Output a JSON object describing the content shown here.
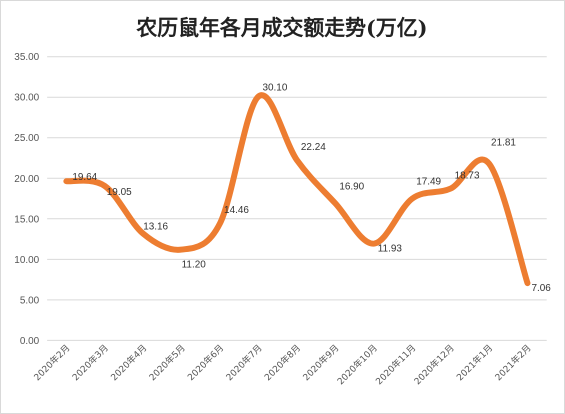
{
  "chart_data": {
    "type": "line",
    "title": "农历鼠年各月成交额走势(万亿)",
    "xlabel": "",
    "ylabel": "",
    "categories": [
      "2020年2月",
      "2020年3月",
      "2020年4月",
      "2020年5月",
      "2020年6月",
      "2020年7月",
      "2020年8月",
      "2020年9月",
      "2020年10月",
      "2020年11月",
      "2020年12月",
      "2021年1月",
      "2021年2月"
    ],
    "series": [
      {
        "values": [
          19.64,
          19.05,
          13.16,
          11.2,
          14.46,
          30.1,
          22.24,
          16.9,
          11.93,
          17.49,
          18.73,
          21.81,
          7.06
        ]
      }
    ],
    "data_labels": [
      "19.64",
      "19.05",
      "13.16",
      "11.20",
      "14.46",
      "30.10",
      "22.24",
      "16.90",
      "11.93",
      "17.49",
      "18.73",
      "21.81",
      "7.06"
    ],
    "y_ticks": [
      "0.00",
      "5.00",
      "10.00",
      "15.00",
      "20.00",
      "25.00",
      "30.00",
      "35.00"
    ],
    "ylim": [
      0,
      35
    ],
    "smooth": true,
    "grid": true,
    "legend": "none",
    "line_color": "#ED7D31",
    "colors": {
      "grid": "#D9D9D9",
      "text": "#555555",
      "title": "#222222"
    }
  }
}
